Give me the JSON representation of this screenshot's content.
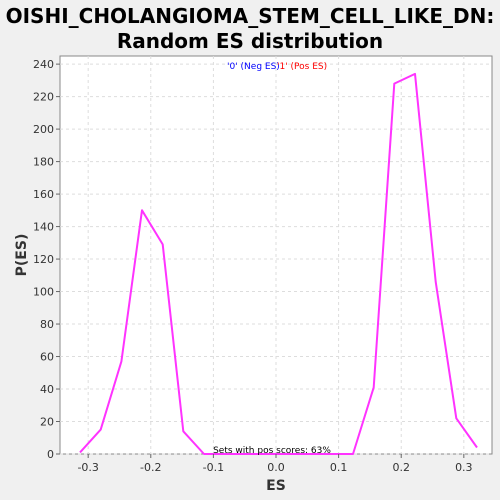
{
  "chart_data": {
    "type": "line",
    "title_lines": [
      "OISHI_CHOLANGIOMA_STEM_CELL_LIKE_DN:",
      "Random ES distribution"
    ],
    "xlabel": "ES",
    "ylabel": "P(ES)",
    "xlim": [
      -0.345,
      0.345
    ],
    "ylim": [
      0,
      245
    ],
    "xticks": [
      -0.3,
      -0.2,
      -0.1,
      0.0,
      0.1,
      0.2,
      0.3
    ],
    "xtick_labels": [
      "-0.3",
      "-0.2",
      "-0.1",
      "0.0",
      "0.1",
      "0.2",
      "0.3"
    ],
    "yticks": [
      0,
      20,
      40,
      60,
      80,
      100,
      120,
      140,
      160,
      180,
      200,
      220,
      240
    ],
    "ytick_labels": [
      "0",
      "20",
      "40",
      "60",
      "80",
      "100",
      "120",
      "140",
      "160",
      "180",
      "200",
      "220",
      "240"
    ],
    "grid": true,
    "legend_position": "top-center",
    "legend": [
      {
        "label": "'0' (Neg ES)",
        "color": "#0000ff"
      },
      {
        "label": "'1' (Pos ES)",
        "color": "#ff0000"
      }
    ],
    "annotation": "Sets with pos scores: 63%",
    "series": [
      {
        "color": "#ff33ff",
        "x": [
          -0.313,
          -0.28,
          -0.247,
          -0.214,
          -0.181,
          -0.148,
          -0.115,
          -0.082,
          0.09,
          0.123,
          0.156,
          0.189,
          0.222,
          0.255,
          0.288,
          0.321
        ],
        "y": [
          1,
          15,
          57,
          150,
          129,
          14,
          0,
          0,
          0,
          0,
          41,
          228,
          234,
          106,
          22,
          4
        ]
      }
    ]
  }
}
